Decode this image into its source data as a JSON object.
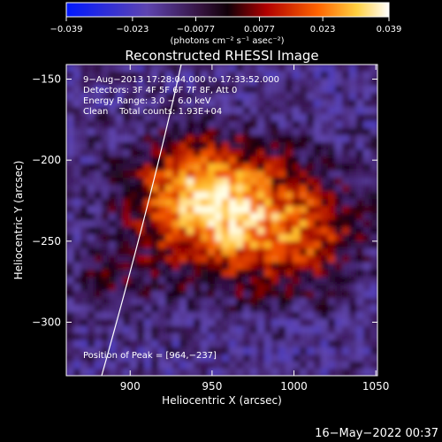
{
  "chart_data": {
    "type": "heatmap",
    "title": "Reconstructed RHESSI Image",
    "xlabel": "Heliocentric X (arcsec)",
    "ylabel": "Heliocentric Y (arcsec)",
    "xlim": [
      861,
      1051
    ],
    "ylim": [
      -333,
      -141
    ],
    "xticks": [
      900,
      950,
      1000,
      1050
    ],
    "xtick_labels": [
      "900",
      "950",
      "1000",
      "1050"
    ],
    "yticks": [
      -150,
      -200,
      -250,
      -300
    ],
    "ytick_labels": [
      "−150",
      "−200",
      "−250",
      "−300"
    ],
    "colorbar": {
      "range": [
        -0.039,
        0.039
      ],
      "ticks": [
        -0.039,
        -0.023,
        -0.0077,
        0.0077,
        0.023,
        0.039
      ],
      "tick_labels": [
        "−0.039",
        "−0.023",
        "−0.0077",
        "0.0077",
        "0.023",
        "0.039"
      ],
      "units_label": "(photons cm⁻² s⁻¹ asec⁻²)"
    },
    "peak": [
      964,
      -237
    ],
    "annotations": {
      "time": "9−Aug−2013 17:28:04.000 to 17:33:52.000",
      "detectors": "Detectors: 3F 4F 5F 6F 7F 8F, Att 0",
      "energy": "Energy Range: 3.0 − 6.0 keV",
      "clean": "Clean    Total counts: 1.93E+04",
      "peak_label": "Position of Peak = [964,−237]"
    }
  },
  "footer_date": "16−May−2022 00:37",
  "colors": {
    "colormap": [
      "#0000ff",
      "#5a3fa0",
      "#3c0a3c",
      "#000000",
      "#c00000",
      "#ff8000",
      "#ffff80",
      "#ffffff"
    ]
  }
}
